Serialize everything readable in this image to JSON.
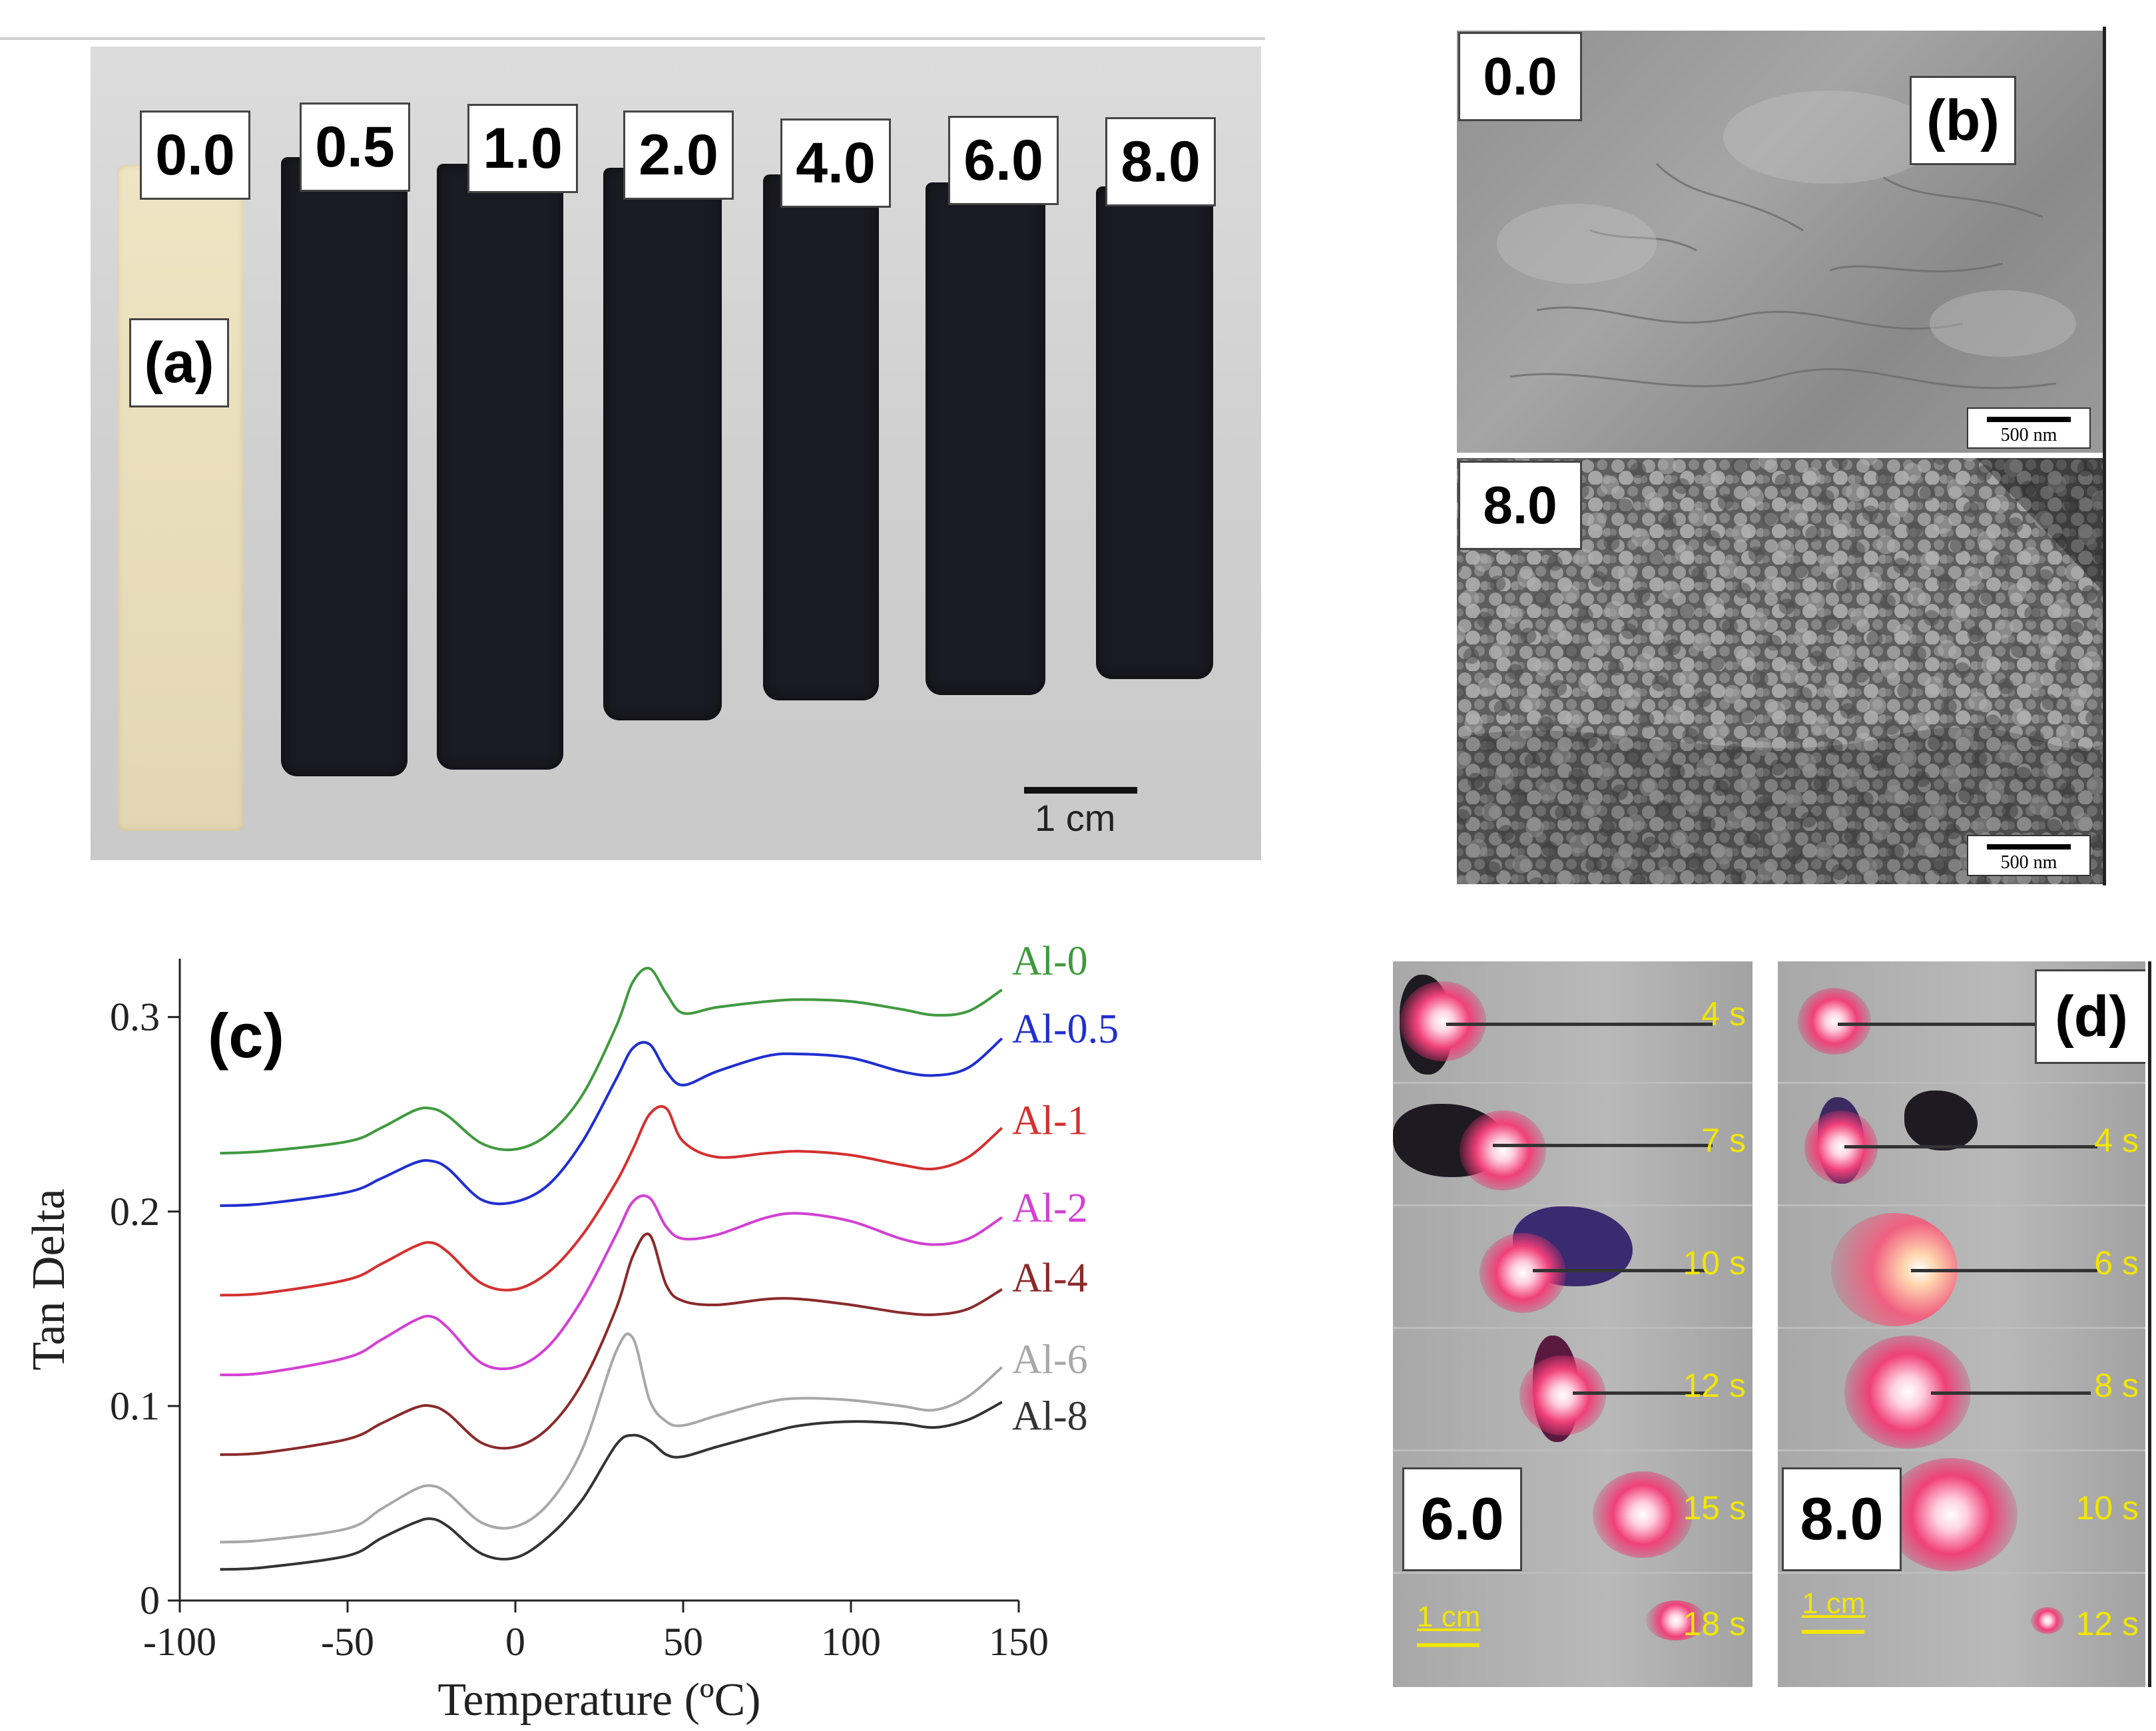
{
  "panel_a": {
    "tag": "(a)",
    "sample_labels": [
      "0.0",
      "0.5",
      "1.0",
      "2.0",
      "4.0",
      "6.0",
      "8.0"
    ],
    "scale_label": "1 cm"
  },
  "panel_b": {
    "tag": "(b)",
    "top_label": "0.0",
    "bottom_label": "8.0",
    "scale_label": "500 nm"
  },
  "panel_c": {
    "tag": "(c)"
  },
  "panel_d": {
    "tag": "(d)",
    "left_label": "6.0",
    "right_label": "8.0",
    "left_times": [
      "4 s",
      "7 s",
      "10 s",
      "12 s",
      "15 s",
      "18 s"
    ],
    "right_times": [
      "4 s",
      "4 s",
      "6 s",
      "8 s",
      "10 s",
      "12 s"
    ],
    "scale_label": "1 cm"
  },
  "chart_data": {
    "type": "line",
    "xlabel": "Temperature (ºC)",
    "ylabel": "Tan Delta",
    "xlim": [
      -100,
      150
    ],
    "ylim": [
      0,
      0.33
    ],
    "xticks": [
      -100,
      -50,
      0,
      50,
      100,
      150
    ],
    "yticks": [
      0,
      0.1,
      0.2,
      0.3
    ],
    "ytick_labels": [
      "0",
      "0.1",
      "0.2",
      "0.3"
    ],
    "grid": false,
    "legend": "labels at right end of each curve",
    "x": [
      -88,
      -75,
      -50,
      -40,
      -30,
      -25,
      -20,
      -10,
      0,
      10,
      20,
      30,
      35,
      40,
      45,
      50,
      60,
      75,
      85,
      100,
      115,
      125,
      135,
      145
    ],
    "series": [
      {
        "name": "Al-0",
        "color": "#3f9a3f",
        "values": [
          0.23,
          0.231,
          0.236,
          0.243,
          0.252,
          0.253,
          0.249,
          0.235,
          0.232,
          0.24,
          0.26,
          0.295,
          0.318,
          0.325,
          0.312,
          0.302,
          0.305,
          0.308,
          0.309,
          0.308,
          0.304,
          0.301,
          0.303,
          0.314
        ]
      },
      {
        "name": "Al-0.5",
        "color": "#1f2fd0",
        "values": [
          0.203,
          0.204,
          0.21,
          0.217,
          0.225,
          0.226,
          0.222,
          0.206,
          0.205,
          0.214,
          0.236,
          0.268,
          0.284,
          0.286,
          0.272,
          0.265,
          0.272,
          0.28,
          0.281,
          0.279,
          0.272,
          0.27,
          0.274,
          0.289
        ]
      },
      {
        "name": "Al-1",
        "color": "#d43030",
        "values": [
          0.157,
          0.158,
          0.165,
          0.173,
          0.182,
          0.184,
          0.179,
          0.163,
          0.16,
          0.169,
          0.188,
          0.215,
          0.232,
          0.25,
          0.253,
          0.236,
          0.228,
          0.23,
          0.231,
          0.229,
          0.224,
          0.222,
          0.228,
          0.243
        ]
      },
      {
        "name": "Al-2",
        "color": "#d340d3",
        "values": [
          0.116,
          0.117,
          0.125,
          0.134,
          0.144,
          0.146,
          0.14,
          0.122,
          0.12,
          0.131,
          0.155,
          0.188,
          0.205,
          0.207,
          0.192,
          0.186,
          0.188,
          0.197,
          0.199,
          0.195,
          0.186,
          0.183,
          0.186,
          0.197
        ]
      },
      {
        "name": "Al-4",
        "color": "#8a2a2a",
        "values": [
          0.075,
          0.076,
          0.083,
          0.091,
          0.099,
          0.1,
          0.096,
          0.081,
          0.079,
          0.089,
          0.112,
          0.15,
          0.177,
          0.188,
          0.162,
          0.154,
          0.152,
          0.155,
          0.155,
          0.152,
          0.148,
          0.147,
          0.15,
          0.16
        ]
      },
      {
        "name": "Al-6",
        "color": "#a8a8a8",
        "values": [
          0.03,
          0.031,
          0.037,
          0.047,
          0.057,
          0.059,
          0.055,
          0.04,
          0.038,
          0.05,
          0.078,
          0.128,
          0.135,
          0.103,
          0.092,
          0.09,
          0.095,
          0.102,
          0.104,
          0.103,
          0.1,
          0.098,
          0.105,
          0.12
        ]
      },
      {
        "name": "Al-8",
        "color": "#333333",
        "values": [
          0.016,
          0.017,
          0.023,
          0.032,
          0.04,
          0.042,
          0.038,
          0.024,
          0.022,
          0.033,
          0.052,
          0.08,
          0.085,
          0.082,
          0.075,
          0.074,
          0.079,
          0.086,
          0.09,
          0.092,
          0.091,
          0.089,
          0.093,
          0.102
        ]
      }
    ]
  }
}
